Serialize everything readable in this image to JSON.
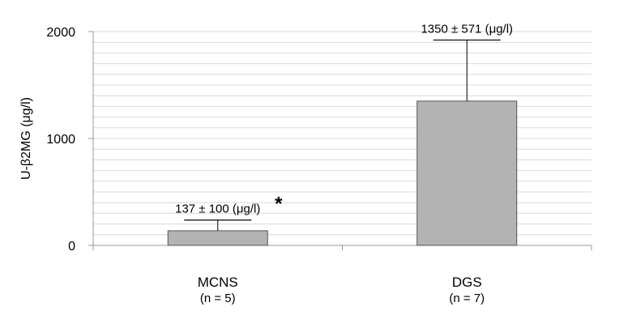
{
  "chart_data": {
    "type": "bar",
    "ylabel": "U-β2MG (μg/l)",
    "ylim": [
      0,
      2000
    ],
    "yticks": [
      0,
      1000,
      2000
    ],
    "grid": true,
    "categories": [
      "MCNS",
      "DGS"
    ],
    "category_sublabels": [
      "(n = 5)",
      "(n = 7)"
    ],
    "values": [
      137,
      1350
    ],
    "errors": [
      100,
      571
    ],
    "data_labels": [
      "137 ± 100 (μg/l)",
      "1350 ± 571 (μg/l)"
    ],
    "annotations": [
      {
        "category": "MCNS",
        "text": "*"
      }
    ],
    "bar_color": "#b3b3b3",
    "bar_stroke": "#555555",
    "gridline_color": "#d9d9d9"
  }
}
